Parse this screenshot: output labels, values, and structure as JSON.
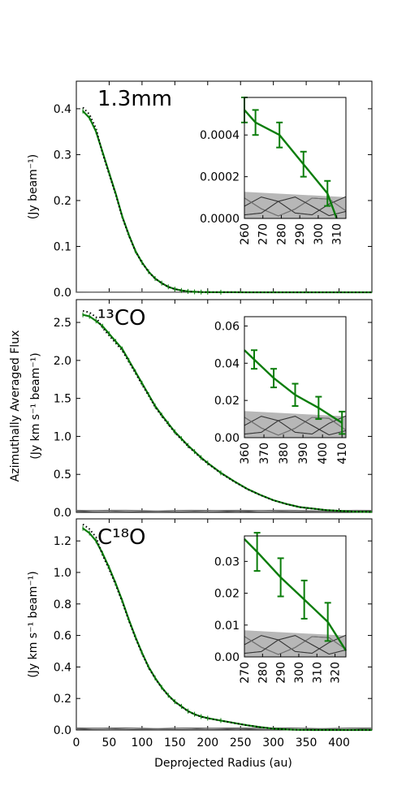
{
  "figure": {
    "ylabel_shared": "Azimuthally Averaged Flux",
    "xlabel": "Deprojected Radius (au)"
  },
  "chart_data": [
    {
      "type": "line",
      "panel": "1.3mm",
      "title": "1.3mm",
      "ylabel": "(Jy beam⁻¹)",
      "xlim": [
        0,
        450
      ],
      "ylim": [
        0,
        0.46
      ],
      "yticks": [
        "0.0",
        "0.1",
        "0.2",
        "0.3",
        "0.4"
      ],
      "series": [
        {
          "x": [
            10,
            20,
            30,
            40,
            50,
            60,
            70,
            80,
            90,
            100,
            110,
            120,
            130,
            140,
            150,
            160,
            170,
            180,
            190,
            200,
            220,
            240,
            260,
            280,
            300,
            350,
            400,
            450
          ],
          "values": [
            0.395,
            0.38,
            0.35,
            0.305,
            0.26,
            0.215,
            0.165,
            0.125,
            0.09,
            0.065,
            0.045,
            0.03,
            0.02,
            0.012,
            0.007,
            0.004,
            0.002,
            0.001,
            0.0005,
            0.0003,
            0.0002,
            0.0001,
            5e-05,
            0.0,
            0.0,
            0.0,
            0.0,
            0.0
          ]
        }
      ],
      "inset": {
        "xlim": [
          260,
          315
        ],
        "ylim": [
          0,
          0.00058
        ],
        "xticks": [
          "260",
          "270",
          "280",
          "290",
          "300",
          "310"
        ],
        "yticks": [
          "0.0000",
          "0.0002",
          "0.0004"
        ],
        "x": [
          260,
          266,
          279,
          292,
          305,
          310
        ],
        "values": [
          0.00052,
          0.00046,
          0.0004,
          0.00026,
          0.00012,
          0.0
        ],
        "errors": [
          6e-05,
          6e-05,
          6e-05,
          6e-05,
          6e-05,
          0.0
        ]
      }
    },
    {
      "type": "line",
      "panel": "13CO",
      "title": "¹³CO",
      "ylabel": "(Jy km s⁻¹ beam⁻¹)",
      "xlim": [
        0,
        450
      ],
      "ylim": [
        0,
        2.8
      ],
      "yticks": [
        "0.0",
        "0.5",
        "1.0",
        "1.5",
        "2.0",
        "2.5"
      ],
      "series": [
        {
          "x": [
            10,
            20,
            30,
            40,
            50,
            60,
            70,
            80,
            90,
            100,
            110,
            120,
            130,
            140,
            150,
            160,
            170,
            180,
            190,
            200,
            220,
            240,
            260,
            280,
            300,
            320,
            340,
            360,
            380,
            400,
            420,
            450
          ],
          "values": [
            2.6,
            2.58,
            2.52,
            2.45,
            2.35,
            2.25,
            2.15,
            2.0,
            1.85,
            1.7,
            1.55,
            1.4,
            1.28,
            1.17,
            1.06,
            0.97,
            0.88,
            0.8,
            0.72,
            0.65,
            0.52,
            0.41,
            0.31,
            0.23,
            0.16,
            0.11,
            0.07,
            0.05,
            0.03,
            0.02,
            0.01,
            0.005
          ]
        }
      ],
      "inset": {
        "xlim": [
          360,
          412
        ],
        "ylim": [
          0,
          0.065
        ],
        "xticks": [
          "360",
          "370",
          "380",
          "390",
          "400",
          "410"
        ],
        "yticks": [
          "0.00",
          "0.02",
          "0.04",
          "0.06"
        ],
        "x": [
          360,
          365,
          375,
          386,
          398,
          410
        ],
        "values": [
          0.047,
          0.042,
          0.032,
          0.023,
          0.016,
          0.008
        ],
        "errors": [
          0.0,
          0.005,
          0.005,
          0.006,
          0.006,
          0.006
        ]
      }
    },
    {
      "type": "line",
      "panel": "C18O",
      "title": "C¹⁸O",
      "ylabel": "(Jy km s⁻¹ beam⁻¹)",
      "xlim": [
        0,
        450
      ],
      "ylim": [
        0,
        1.34
      ],
      "yticks": [
        "0.0",
        "0.2",
        "0.4",
        "0.6",
        "0.8",
        "1.0",
        "1.2"
      ],
      "series": [
        {
          "x": [
            10,
            20,
            30,
            40,
            50,
            60,
            70,
            80,
            90,
            100,
            110,
            120,
            130,
            140,
            150,
            160,
            170,
            180,
            190,
            200,
            220,
            240,
            260,
            280,
            300,
            320,
            340,
            360,
            400,
            450
          ],
          "values": [
            1.28,
            1.25,
            1.2,
            1.12,
            1.03,
            0.93,
            0.82,
            0.7,
            0.59,
            0.49,
            0.4,
            0.33,
            0.27,
            0.22,
            0.18,
            0.15,
            0.12,
            0.1,
            0.085,
            0.075,
            0.06,
            0.045,
            0.03,
            0.018,
            0.008,
            0.003,
            0.001,
            0.0,
            0.0,
            0.0
          ]
        }
      ],
      "inset": {
        "xlim": [
          270,
          326
        ],
        "ylim": [
          0,
          0.038
        ],
        "xticks": [
          "270",
          "280",
          "290",
          "300",
          "310",
          "320"
        ],
        "yticks": [
          "0.00",
          "0.01",
          "0.02",
          "0.03"
        ],
        "x": [
          270,
          277,
          290,
          303,
          316,
          326
        ],
        "values": [
          0.037,
          0.033,
          0.025,
          0.018,
          0.011,
          0.002
        ],
        "errors": [
          0.0,
          0.006,
          0.006,
          0.006,
          0.006,
          0.0
        ]
      }
    }
  ]
}
